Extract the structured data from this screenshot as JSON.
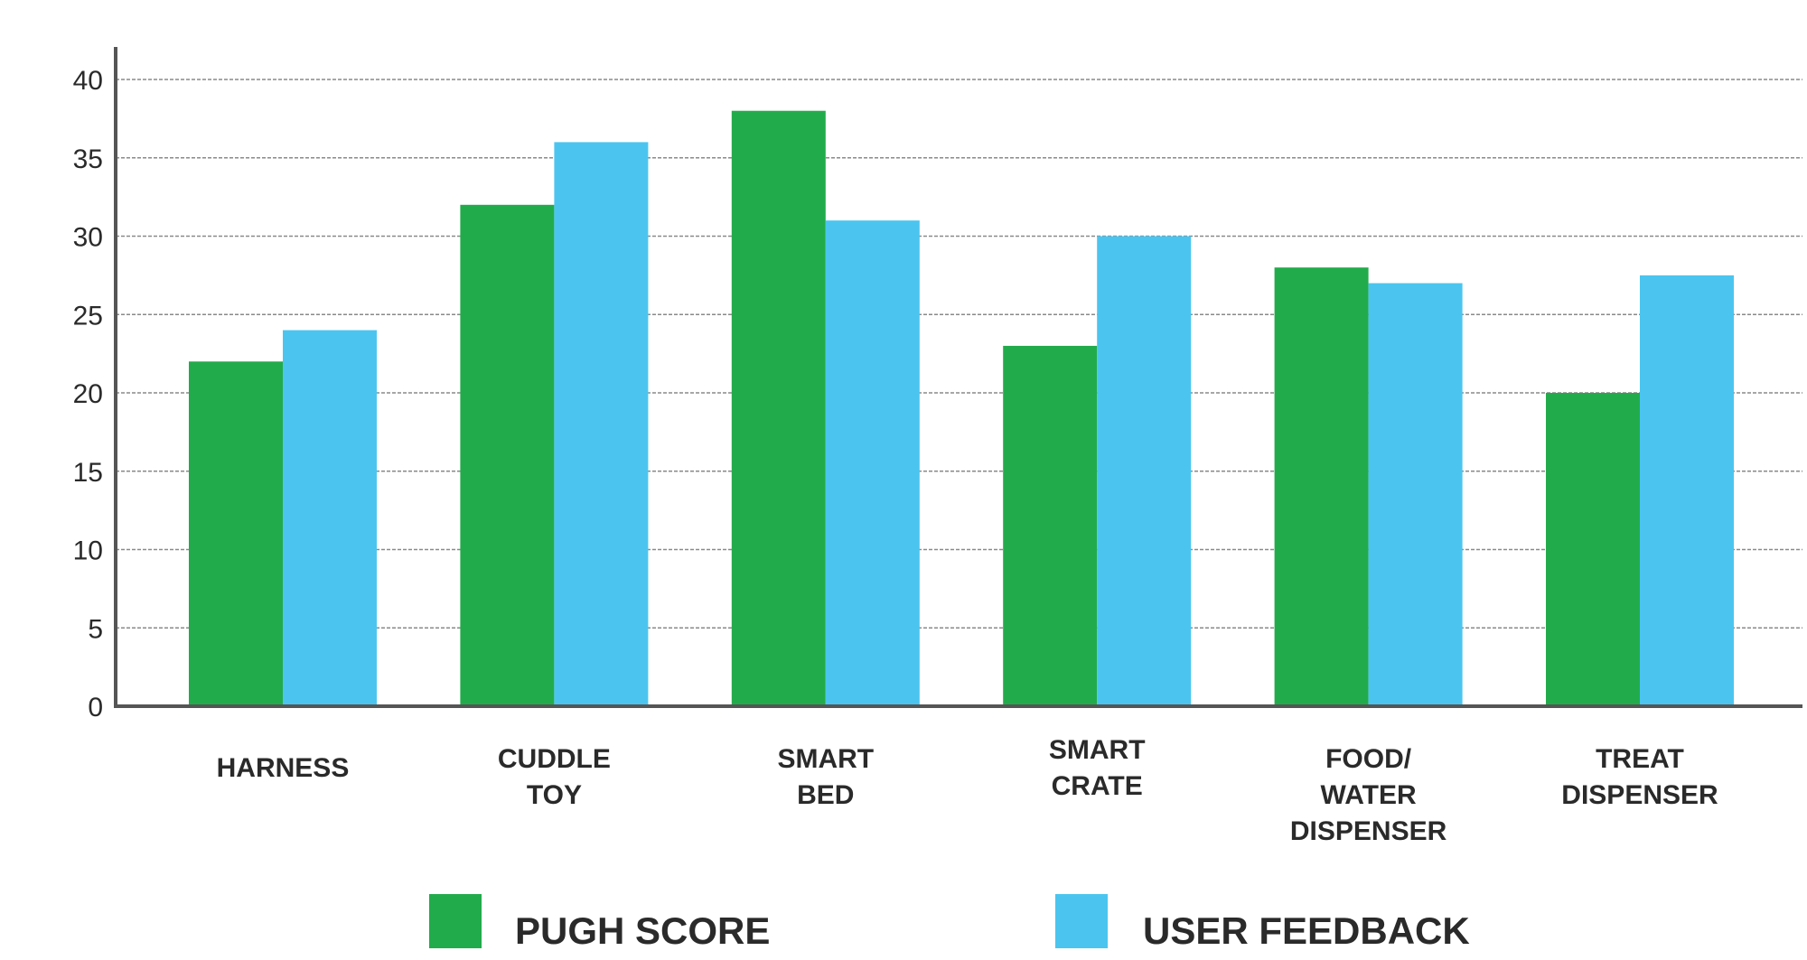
{
  "chart_data": {
    "type": "bar",
    "categories": [
      [
        "HARNESS"
      ],
      [
        "CUDDLE",
        "TOY"
      ],
      [
        "SMART",
        "BED"
      ],
      [
        "SMART",
        "CRATE"
      ],
      [
        "FOOD/",
        "WATER",
        "DISPENSER"
      ],
      [
        "TREAT",
        "DISPENSER"
      ]
    ],
    "series": [
      {
        "name": "PUGH SCORE",
        "color": "#22ab4b",
        "values": [
          22,
          32,
          38,
          23,
          28,
          20
        ]
      },
      {
        "name": "USER FEEDBACK",
        "color": "#4bc5f0",
        "values": [
          24,
          36,
          31,
          30,
          27,
          27.5
        ]
      }
    ],
    "ylim": [
      0,
      40
    ],
    "yticks": [
      0,
      5,
      10,
      15,
      20,
      25,
      30,
      35,
      40
    ],
    "grid": true,
    "legend_position": "bottom"
  }
}
